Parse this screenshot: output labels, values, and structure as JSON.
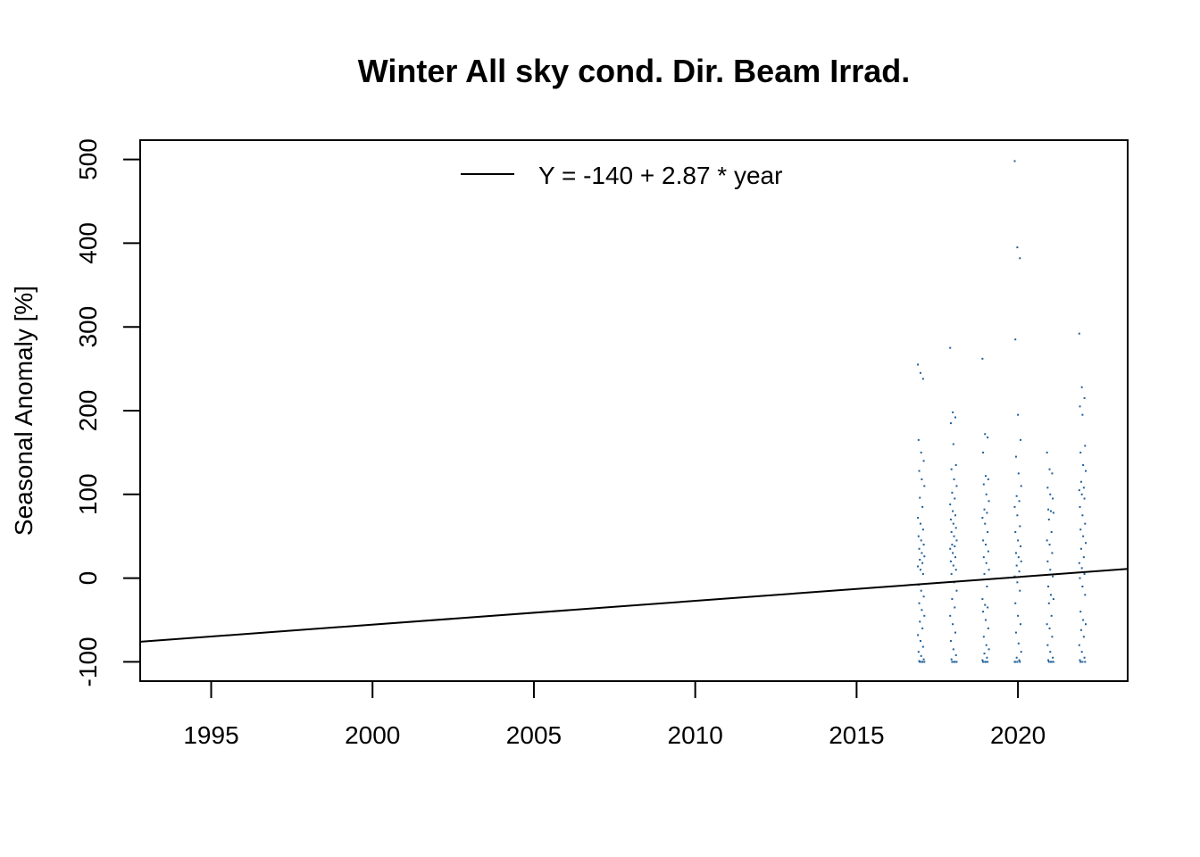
{
  "chart_data": {
    "type": "scatter",
    "title": "Winter All sky cond. Dir. Beam Irrad.",
    "xlabel": "",
    "ylabel": "Seasonal Anomaly [%]",
    "xlim": [
      1992.8,
      2023.4
    ],
    "ylim": [
      -123,
      523
    ],
    "x_ticks": [
      1995,
      2000,
      2005,
      2010,
      2015,
      2020
    ],
    "y_ticks": [
      -100,
      0,
      100,
      200,
      300,
      400,
      500
    ],
    "grid": false,
    "legend": {
      "position": "top-center",
      "entries": [
        "Y = -140 + 2.87 * year"
      ]
    },
    "point_color": "#1f5f99",
    "line_color": "#000000",
    "trend_line": {
      "label": "Y = -140 + 2.87 * year",
      "x": [
        1992.8,
        2023.4
      ],
      "y": [
        -76,
        11
      ]
    },
    "series": [
      {
        "x": 2017,
        "values": [
          255,
          245,
          238,
          165,
          150,
          140,
          128,
          118,
          110,
          96,
          85,
          72,
          65,
          58,
          50,
          45,
          40,
          35,
          30,
          26,
          22,
          18,
          14,
          10,
          5,
          -8,
          -15,
          -22,
          -30,
          -38,
          -45,
          -52,
          -60,
          -68,
          -75,
          -82,
          -88,
          -93,
          -97,
          -99,
          -100,
          -100,
          -100,
          -100
        ]
      },
      {
        "x": 2018,
        "values": [
          275,
          198,
          192,
          185,
          160,
          135,
          130,
          118,
          110,
          102,
          95,
          88,
          80,
          75,
          70,
          65,
          60,
          55,
          50,
          45,
          40,
          38,
          35,
          30,
          25,
          20,
          15,
          10,
          5,
          -5,
          -15,
          -25,
          -35,
          -45,
          -55,
          -65,
          -75,
          -85,
          -92,
          -97,
          -100,
          -100,
          -100,
          -100
        ]
      },
      {
        "x": 2019,
        "values": [
          262,
          172,
          168,
          150,
          122,
          118,
          112,
          100,
          92,
          82,
          78,
          72,
          65,
          55,
          45,
          40,
          32,
          25,
          18,
          10,
          5,
          -10,
          -25,
          -32,
          -35,
          -40,
          -50,
          -60,
          -70,
          -80,
          -85,
          -90,
          -95,
          -98,
          -100,
          -100,
          -100,
          -100
        ]
      },
      {
        "x": 2020,
        "values": [
          498,
          395,
          382,
          285,
          195,
          165,
          145,
          125,
          110,
          98,
          92,
          85,
          75,
          62,
          55,
          45,
          38,
          30,
          25,
          20,
          15,
          8,
          2,
          -5,
          -15,
          -30,
          -45,
          -55,
          -65,
          -78,
          -88,
          -95,
          -98,
          -100,
          -100,
          -100,
          -100
        ]
      },
      {
        "x": 2021,
        "values": [
          150,
          130,
          125,
          108,
          100,
          95,
          82,
          80,
          78,
          70,
          55,
          45,
          40,
          30,
          20,
          10,
          2,
          -10,
          -20,
          -25,
          -30,
          -45,
          -55,
          -60,
          -70,
          -80,
          -88,
          -95,
          -98,
          -100,
          -100,
          -100,
          -100
        ]
      },
      {
        "x": 2022,
        "values": [
          292,
          228,
          215,
          205,
          195,
          158,
          150,
          135,
          128,
          115,
          108,
          105,
          100,
          95,
          85,
          75,
          65,
          58,
          50,
          42,
          35,
          25,
          18,
          12,
          5,
          0,
          -10,
          -20,
          -40,
          -50,
          -55,
          -62,
          -70,
          -80,
          -88,
          -95,
          -98,
          -100,
          -100,
          -100
        ]
      }
    ]
  }
}
